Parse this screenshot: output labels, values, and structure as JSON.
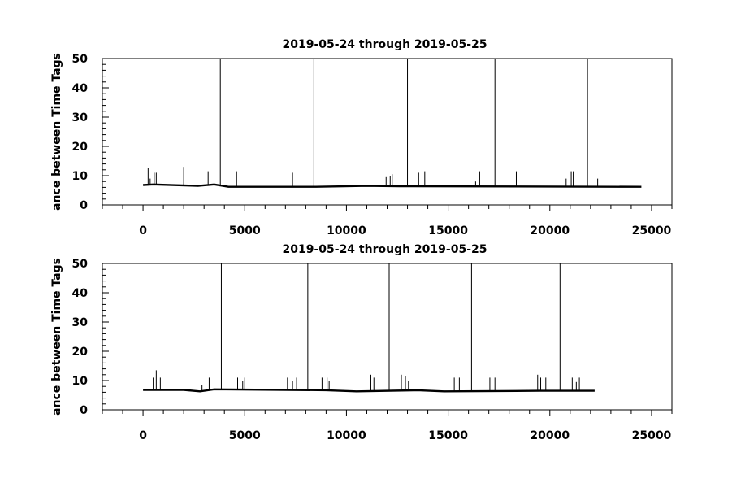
{
  "chart_data": [
    {
      "type": "line",
      "title": "2019-05-24 through 2019-05-25",
      "ylabel": "ance between Time Tags",
      "xlabel": "",
      "xlim": [
        -2000,
        26000
      ],
      "ylim": [
        0,
        50
      ],
      "xticks": [
        0,
        5000,
        10000,
        15000,
        20000,
        25000
      ],
      "yticks": [
        0,
        10,
        20,
        30,
        40,
        50
      ],
      "grid": false,
      "series": [
        {
          "baseline": {
            "x": [
              0,
              500,
              2700,
              3500,
              4200,
              8500,
              11000,
              12600,
              24500
            ],
            "y": [
              6.8,
              7.0,
              6.5,
              7.0,
              6.2,
              6.2,
              6.5,
              6.4,
              6.2
            ]
          },
          "spikes": [
            {
              "x": 250,
              "y": 12.5
            },
            {
              "x": 350,
              "y": 9
            },
            {
              "x": 550,
              "y": 11
            },
            {
              "x": 650,
              "y": 11
            },
            {
              "x": 2000,
              "y": 13
            },
            {
              "x": 3200,
              "y": 11.5
            },
            {
              "x": 3800,
              "y": 50
            },
            {
              "x": 4600,
              "y": 11.5
            },
            {
              "x": 7350,
              "y": 11
            },
            {
              "x": 8400,
              "y": 50
            },
            {
              "x": 11800,
              "y": 8.5
            },
            {
              "x": 11950,
              "y": 9.5
            },
            {
              "x": 12150,
              "y": 10
            },
            {
              "x": 12250,
              "y": 10.5
            },
            {
              "x": 13000,
              "y": 50
            },
            {
              "x": 13550,
              "y": 11
            },
            {
              "x": 13850,
              "y": 11.5
            },
            {
              "x": 16350,
              "y": 8
            },
            {
              "x": 16550,
              "y": 11.5
            },
            {
              "x": 17300,
              "y": 50
            },
            {
              "x": 18350,
              "y": 11.5
            },
            {
              "x": 20800,
              "y": 9
            },
            {
              "x": 21050,
              "y": 11.5
            },
            {
              "x": 21150,
              "y": 11.5
            },
            {
              "x": 21850,
              "y": 50
            },
            {
              "x": 22350,
              "y": 9
            }
          ]
        }
      ]
    },
    {
      "type": "line",
      "title": "2019-05-24 through 2019-05-25",
      "ylabel": "ance between Time Tags",
      "xlabel": "",
      "xlim": [
        -2000,
        26000
      ],
      "ylim": [
        0,
        50
      ],
      "xticks": [
        0,
        5000,
        10000,
        15000,
        20000,
        25000
      ],
      "yticks": [
        0,
        10,
        20,
        30,
        40,
        50
      ],
      "grid": false,
      "series": [
        {
          "baseline": {
            "x": [
              0,
              2000,
              2800,
              3500,
              9000,
              10500,
              13500,
              14800,
              19500,
              22200
            ],
            "y": [
              6.8,
              6.8,
              6.3,
              7.0,
              6.7,
              6.3,
              6.7,
              6.3,
              6.5,
              6.5
            ]
          },
          "spikes": [
            {
              "x": 500,
              "y": 11
            },
            {
              "x": 650,
              "y": 13.5
            },
            {
              "x": 850,
              "y": 11
            },
            {
              "x": 2900,
              "y": 8.5
            },
            {
              "x": 3250,
              "y": 11
            },
            {
              "x": 3850,
              "y": 50
            },
            {
              "x": 4650,
              "y": 11
            },
            {
              "x": 4900,
              "y": 10
            },
            {
              "x": 5000,
              "y": 11
            },
            {
              "x": 7100,
              "y": 11
            },
            {
              "x": 7350,
              "y": 10
            },
            {
              "x": 7550,
              "y": 11
            },
            {
              "x": 8100,
              "y": 50
            },
            {
              "x": 8800,
              "y": 11
            },
            {
              "x": 9050,
              "y": 11
            },
            {
              "x": 9150,
              "y": 10
            },
            {
              "x": 11200,
              "y": 12
            },
            {
              "x": 11350,
              "y": 11
            },
            {
              "x": 11600,
              "y": 11
            },
            {
              "x": 12100,
              "y": 50
            },
            {
              "x": 12700,
              "y": 12
            },
            {
              "x": 12900,
              "y": 11.5
            },
            {
              "x": 13050,
              "y": 10
            },
            {
              "x": 15300,
              "y": 11
            },
            {
              "x": 15550,
              "y": 11
            },
            {
              "x": 16150,
              "y": 50
            },
            {
              "x": 17050,
              "y": 11
            },
            {
              "x": 17300,
              "y": 11
            },
            {
              "x": 19400,
              "y": 12
            },
            {
              "x": 19550,
              "y": 11
            },
            {
              "x": 19800,
              "y": 11
            },
            {
              "x": 20500,
              "y": 50
            },
            {
              "x": 21100,
              "y": 11
            },
            {
              "x": 21300,
              "y": 9.5
            },
            {
              "x": 21450,
              "y": 11
            }
          ]
        }
      ]
    }
  ]
}
